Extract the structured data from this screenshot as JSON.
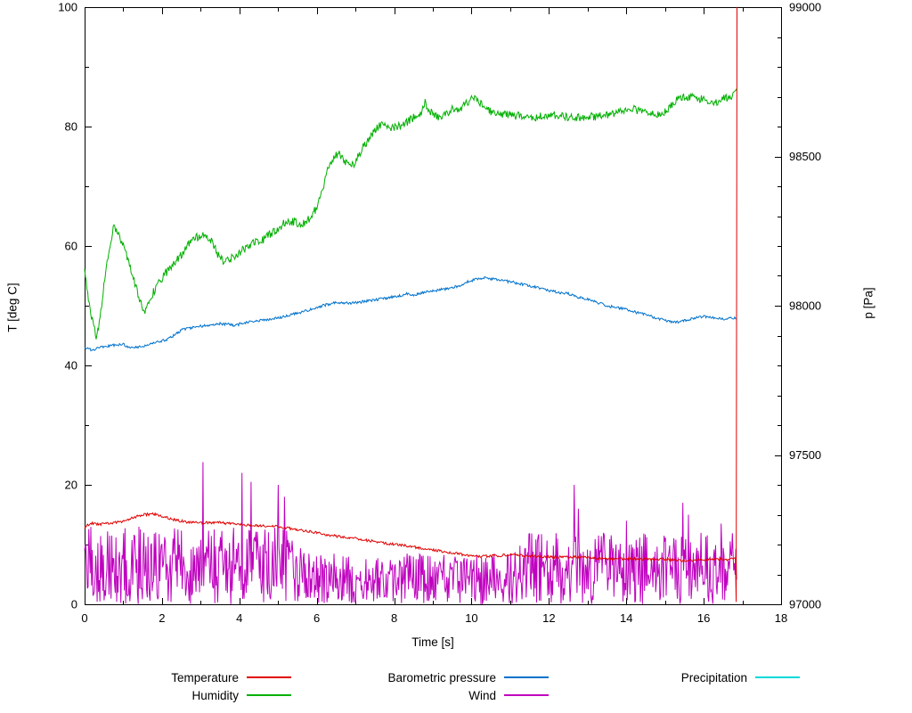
{
  "chart_data": {
    "type": "line",
    "title": "",
    "x_axis": {
      "label": "Time [s]",
      "min": 0,
      "max": 18,
      "tick_step": 2,
      "minor_step": 1
    },
    "y_axis_left": {
      "label": "T [deg C]",
      "min": 0,
      "max": 100,
      "tick_step": 20,
      "minor_step": 10
    },
    "y_axis_right": {
      "label": "p [Pa]",
      "min": 97000,
      "max": 99000,
      "tick_step": 500,
      "minor_step": 100
    },
    "series": [
      {
        "name": "Temperature",
        "color": "#e00000",
        "axis": "left",
        "noise": 0.22,
        "points": [
          [
            0,
            12.8
          ],
          [
            0.15,
            13.6
          ],
          [
            0.4,
            13.4
          ],
          [
            0.7,
            13.6
          ],
          [
            1.0,
            13.9
          ],
          [
            1.3,
            14.6
          ],
          [
            1.5,
            15.0
          ],
          [
            1.8,
            15.1
          ],
          [
            2.0,
            14.7
          ],
          [
            2.3,
            14.2
          ],
          [
            2.6,
            13.8
          ],
          [
            3.0,
            13.6
          ],
          [
            3.4,
            13.7
          ],
          [
            3.8,
            13.5
          ],
          [
            4.2,
            13.3
          ],
          [
            4.6,
            13.1
          ],
          [
            5.0,
            13.0
          ],
          [
            5.4,
            12.6
          ],
          [
            5.8,
            12.2
          ],
          [
            6.2,
            11.7
          ],
          [
            6.6,
            11.3
          ],
          [
            7.0,
            11.0
          ],
          [
            7.4,
            10.6
          ],
          [
            7.8,
            10.2
          ],
          [
            8.2,
            9.9
          ],
          [
            8.6,
            9.5
          ],
          [
            9.0,
            9.1
          ],
          [
            9.4,
            8.7
          ],
          [
            9.8,
            8.3
          ],
          [
            10.2,
            8.0
          ],
          [
            10.6,
            8.1
          ],
          [
            11.0,
            8.3
          ],
          [
            11.4,
            8.1
          ],
          [
            11.8,
            8.0
          ],
          [
            12.2,
            7.9
          ],
          [
            12.6,
            7.9
          ],
          [
            13.0,
            7.8
          ],
          [
            13.4,
            7.6
          ],
          [
            13.8,
            7.6
          ],
          [
            14.2,
            7.6
          ],
          [
            14.6,
            7.5
          ],
          [
            15.0,
            7.5
          ],
          [
            15.4,
            7.3
          ],
          [
            15.8,
            7.4
          ],
          [
            16.2,
            7.6
          ],
          [
            16.6,
            7.5
          ],
          [
            16.82,
            7.7
          ],
          [
            16.84,
            0.5
          ],
          [
            16.86,
            100
          ]
        ]
      },
      {
        "name": "Humidity",
        "color": "#00b000",
        "axis": "left",
        "noise": 0.7,
        "points": [
          [
            0,
            56
          ],
          [
            0.08,
            52
          ],
          [
            0.15,
            49
          ],
          [
            0.25,
            46
          ],
          [
            0.3,
            45
          ],
          [
            0.4,
            47.5
          ],
          [
            0.5,
            54
          ],
          [
            0.6,
            58
          ],
          [
            0.7,
            61
          ],
          [
            0.75,
            63.5
          ],
          [
            0.85,
            62
          ],
          [
            0.95,
            61
          ],
          [
            1.05,
            59
          ],
          [
            1.15,
            57
          ],
          [
            1.25,
            55
          ],
          [
            1.35,
            52.5
          ],
          [
            1.45,
            50.5
          ],
          [
            1.55,
            49
          ],
          [
            1.65,
            50.5
          ],
          [
            1.75,
            52
          ],
          [
            1.9,
            53.5
          ],
          [
            2.1,
            55.5
          ],
          [
            2.3,
            57
          ],
          [
            2.5,
            58.5
          ],
          [
            2.7,
            60.5
          ],
          [
            2.9,
            61.5
          ],
          [
            3.1,
            62
          ],
          [
            3.3,
            60.5
          ],
          [
            3.45,
            58.5
          ],
          [
            3.6,
            57.5
          ],
          [
            3.8,
            58
          ],
          [
            4.0,
            59
          ],
          [
            4.2,
            60
          ],
          [
            4.4,
            60.5
          ],
          [
            4.6,
            61
          ],
          [
            4.8,
            62
          ],
          [
            5.0,
            63
          ],
          [
            5.2,
            64
          ],
          [
            5.4,
            64
          ],
          [
            5.6,
            63.5
          ],
          [
            5.8,
            64.5
          ],
          [
            6.0,
            66.5
          ],
          [
            6.1,
            68
          ],
          [
            6.25,
            72
          ],
          [
            6.4,
            74.5
          ],
          [
            6.55,
            75.5
          ],
          [
            6.7,
            74.5
          ],
          [
            6.85,
            73.5
          ],
          [
            7.0,
            74
          ],
          [
            7.15,
            76
          ],
          [
            7.3,
            77.5
          ],
          [
            7.5,
            79.5
          ],
          [
            7.7,
            80.5
          ],
          [
            7.9,
            79.5
          ],
          [
            8.1,
            80
          ],
          [
            8.3,
            80.5
          ],
          [
            8.5,
            81.5
          ],
          [
            8.7,
            82.5
          ],
          [
            8.8,
            84
          ],
          [
            8.95,
            82.5
          ],
          [
            9.1,
            81.5
          ],
          [
            9.3,
            82
          ],
          [
            9.5,
            83
          ],
          [
            9.7,
            83
          ],
          [
            9.9,
            84
          ],
          [
            10.0,
            85
          ],
          [
            10.15,
            84.5
          ],
          [
            10.3,
            83.5
          ],
          [
            10.5,
            82.5
          ],
          [
            10.7,
            82
          ],
          [
            11.0,
            82
          ],
          [
            11.3,
            81.7
          ],
          [
            11.6,
            81.5
          ],
          [
            12.0,
            82
          ],
          [
            12.4,
            81.7
          ],
          [
            12.8,
            81.5
          ],
          [
            13.2,
            81.7
          ],
          [
            13.6,
            82
          ],
          [
            13.9,
            82.8
          ],
          [
            14.1,
            83.2
          ],
          [
            14.35,
            82.5
          ],
          [
            14.6,
            82
          ],
          [
            14.9,
            82
          ],
          [
            15.1,
            83
          ],
          [
            15.3,
            84.5
          ],
          [
            15.5,
            85
          ],
          [
            15.7,
            85
          ],
          [
            15.9,
            84.7
          ],
          [
            16.1,
            84.3
          ],
          [
            16.35,
            84
          ],
          [
            16.55,
            84.8
          ],
          [
            16.7,
            85
          ],
          [
            16.85,
            86
          ]
        ]
      },
      {
        "name": "Barometric pressure",
        "color": "#0072cc",
        "axis": "right",
        "noise": 4.5,
        "points": [
          [
            0,
            97858
          ],
          [
            0.2,
            97852
          ],
          [
            0.4,
            97860
          ],
          [
            0.6,
            97865
          ],
          [
            0.8,
            97868
          ],
          [
            1.0,
            97870
          ],
          [
            1.15,
            97862
          ],
          [
            1.3,
            97860
          ],
          [
            1.5,
            97865
          ],
          [
            1.7,
            97872
          ],
          [
            1.9,
            97878
          ],
          [
            2.1,
            97885
          ],
          [
            2.3,
            97900
          ],
          [
            2.5,
            97918
          ],
          [
            2.7,
            97925
          ],
          [
            2.9,
            97930
          ],
          [
            3.1,
            97932
          ],
          [
            3.3,
            97936
          ],
          [
            3.5,
            97940
          ],
          [
            3.7,
            97938
          ],
          [
            3.9,
            97934
          ],
          [
            4.1,
            97942
          ],
          [
            4.3,
            97948
          ],
          [
            4.5,
            97950
          ],
          [
            4.7,
            97953
          ],
          [
            4.9,
            97958
          ],
          [
            5.1,
            97962
          ],
          [
            5.3,
            97968
          ],
          [
            5.5,
            97975
          ],
          [
            5.7,
            97982
          ],
          [
            5.9,
            97990
          ],
          [
            6.1,
            97998
          ],
          [
            6.3,
            98005
          ],
          [
            6.5,
            98010
          ],
          [
            6.7,
            98010
          ],
          [
            6.9,
            98008
          ],
          [
            7.1,
            98012
          ],
          [
            7.3,
            98016
          ],
          [
            7.5,
            98020
          ],
          [
            7.7,
            98024
          ],
          [
            7.9,
            98028
          ],
          [
            8.1,
            98032
          ],
          [
            8.3,
            98040
          ],
          [
            8.5,
            98036
          ],
          [
            8.7,
            98042
          ],
          [
            8.9,
            98048
          ],
          [
            9.1,
            98052
          ],
          [
            9.3,
            98056
          ],
          [
            9.5,
            98060
          ],
          [
            9.7,
            98068
          ],
          [
            9.9,
            98080
          ],
          [
            10.1,
            98088
          ],
          [
            10.3,
            98094
          ],
          [
            10.5,
            98090
          ],
          [
            10.7,
            98086
          ],
          [
            10.9,
            98082
          ],
          [
            11.1,
            98078
          ],
          [
            11.3,
            98072
          ],
          [
            11.5,
            98068
          ],
          [
            11.7,
            98060
          ],
          [
            11.9,
            98054
          ],
          [
            12.1,
            98048
          ],
          [
            12.3,
            98044
          ],
          [
            12.5,
            98040
          ],
          [
            12.7,
            98030
          ],
          [
            12.9,
            98024
          ],
          [
            13.1,
            98018
          ],
          [
            13.3,
            98008
          ],
          [
            13.5,
            98000
          ],
          [
            13.7,
            97994
          ],
          [
            13.9,
            97990
          ],
          [
            14.1,
            97984
          ],
          [
            14.3,
            97976
          ],
          [
            14.5,
            97970
          ],
          [
            14.7,
            97962
          ],
          [
            14.9,
            97954
          ],
          [
            15.1,
            97948
          ],
          [
            15.3,
            97944
          ],
          [
            15.5,
            97950
          ],
          [
            15.7,
            97956
          ],
          [
            15.9,
            97962
          ],
          [
            16.1,
            97964
          ],
          [
            16.3,
            97960
          ],
          [
            16.5,
            97956
          ],
          [
            16.7,
            97958
          ],
          [
            16.85,
            97960
          ]
        ]
      },
      {
        "name": "Wind",
        "color": "#bf00bf",
        "axis": "left",
        "style": "spiky",
        "seed": 7,
        "t_start": 0,
        "t_end": 16.85,
        "envelope": [
          [
            0,
            13
          ],
          [
            5.3,
            13
          ],
          [
            5.7,
            8.5
          ],
          [
            11.0,
            8.5
          ],
          [
            11.5,
            12
          ],
          [
            16.85,
            12
          ]
        ],
        "spikes": [
          [
            3.05,
            23.8
          ],
          [
            4.05,
            22
          ],
          [
            4.3,
            20.5
          ],
          [
            5.0,
            20
          ],
          [
            5.15,
            18
          ],
          [
            12.65,
            20
          ],
          [
            12.75,
            16
          ],
          [
            14.0,
            14
          ],
          [
            15.45,
            17
          ],
          [
            15.6,
            15
          ],
          [
            16.45,
            13.5
          ]
        ]
      },
      {
        "name": "Precipitation",
        "color": "#00d8d8",
        "axis": "left",
        "noise": 0,
        "points": []
      }
    ]
  }
}
